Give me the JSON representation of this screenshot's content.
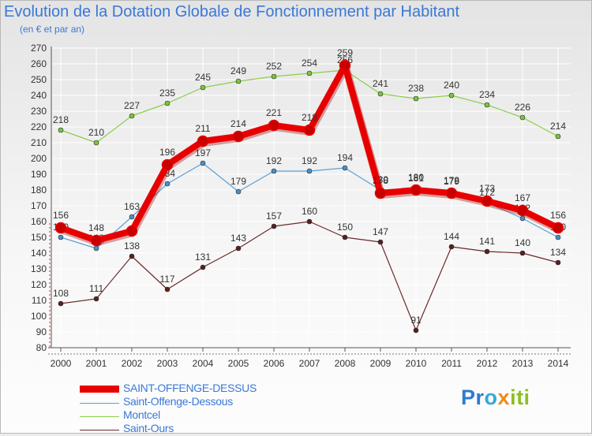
{
  "title": "Evolution de la Dotation Globale de Fonctionnement par Habitant",
  "subtitle": "(en € et par an)",
  "logo": {
    "parts": [
      "Pr",
      "o",
      "x",
      "iti"
    ]
  },
  "colors": {
    "title": "#3a78d6",
    "grid": "#ffffff",
    "axis_dashes": "#e24a4a"
  },
  "chart_data": {
    "type": "line",
    "title": "Evolution de la Dotation Globale de Fonctionnement par Habitant",
    "subtitle": "(en € et par an)",
    "xlabel": "",
    "ylabel": "",
    "ylim": [
      80,
      270
    ],
    "ystep": 10,
    "categories": [
      "2000",
      "2001",
      "2002",
      "2003",
      "2004",
      "2005",
      "2006",
      "2007",
      "2008",
      "2009",
      "2010",
      "2011",
      "2012",
      "2013",
      "2014"
    ],
    "legend_position": "bottom-left",
    "series": [
      {
        "name": "Montcel",
        "color": "#8ccd4a",
        "marker": "#7ac63b",
        "width": 1.2,
        "values": [
          218,
          210,
          227,
          235,
          245,
          249,
          252,
          254,
          256,
          241,
          238,
          240,
          234,
          226,
          214
        ],
        "labels": [
          "218",
          "210",
          "227",
          "235",
          "245",
          "249",
          "252",
          "254",
          "256",
          "241",
          "238",
          "240",
          "234",
          "226",
          "214"
        ]
      },
      {
        "name": "Saint-Offenge-Dessous",
        "color": "#5d9fd1",
        "marker": "#4a8fc8",
        "width": 1.2,
        "values": [
          150,
          143,
          163,
          184,
          197,
          179,
          192,
          192,
          194,
          180,
          181,
          179,
          172,
          162,
          150
        ],
        "labels": [
          "150",
          "143",
          "163",
          "184",
          "197",
          "179",
          "192",
          "192",
          "194",
          "180",
          "181",
          "179",
          "172",
          "162",
          "150"
        ]
      },
      {
        "name": "Saint-Ours",
        "color": "#6a2a2a",
        "marker": "#5a1f1f",
        "width": 1.2,
        "values": [
          108,
          111,
          138,
          117,
          131,
          143,
          157,
          160,
          150,
          147,
          91,
          144,
          141,
          140,
          134
        ],
        "labels": [
          "108",
          "111",
          "138",
          "117",
          "131",
          "143",
          "157",
          "160",
          "150",
          "147",
          "91",
          "144",
          "141",
          "140",
          "134"
        ]
      },
      {
        "name": "SAINT-OFFENGE-DESSUS",
        "color": "#e80000",
        "marker": "#c80000",
        "width": 8,
        "values": [
          156,
          148,
          154,
          196,
          211,
          214,
          221,
          218,
          259,
          178,
          180,
          178,
          173,
          167,
          156
        ],
        "labels": [
          "156",
          "148",
          "",
          "196",
          "211",
          "214",
          "221",
          "218",
          "259",
          "178",
          "180",
          "178",
          "173",
          "167",
          "156"
        ]
      }
    ],
    "legend_order": [
      "SAINT-OFFENGE-DESSUS",
      "Saint-Offenge-Dessous",
      "Montcel",
      "Saint-Ours"
    ]
  }
}
